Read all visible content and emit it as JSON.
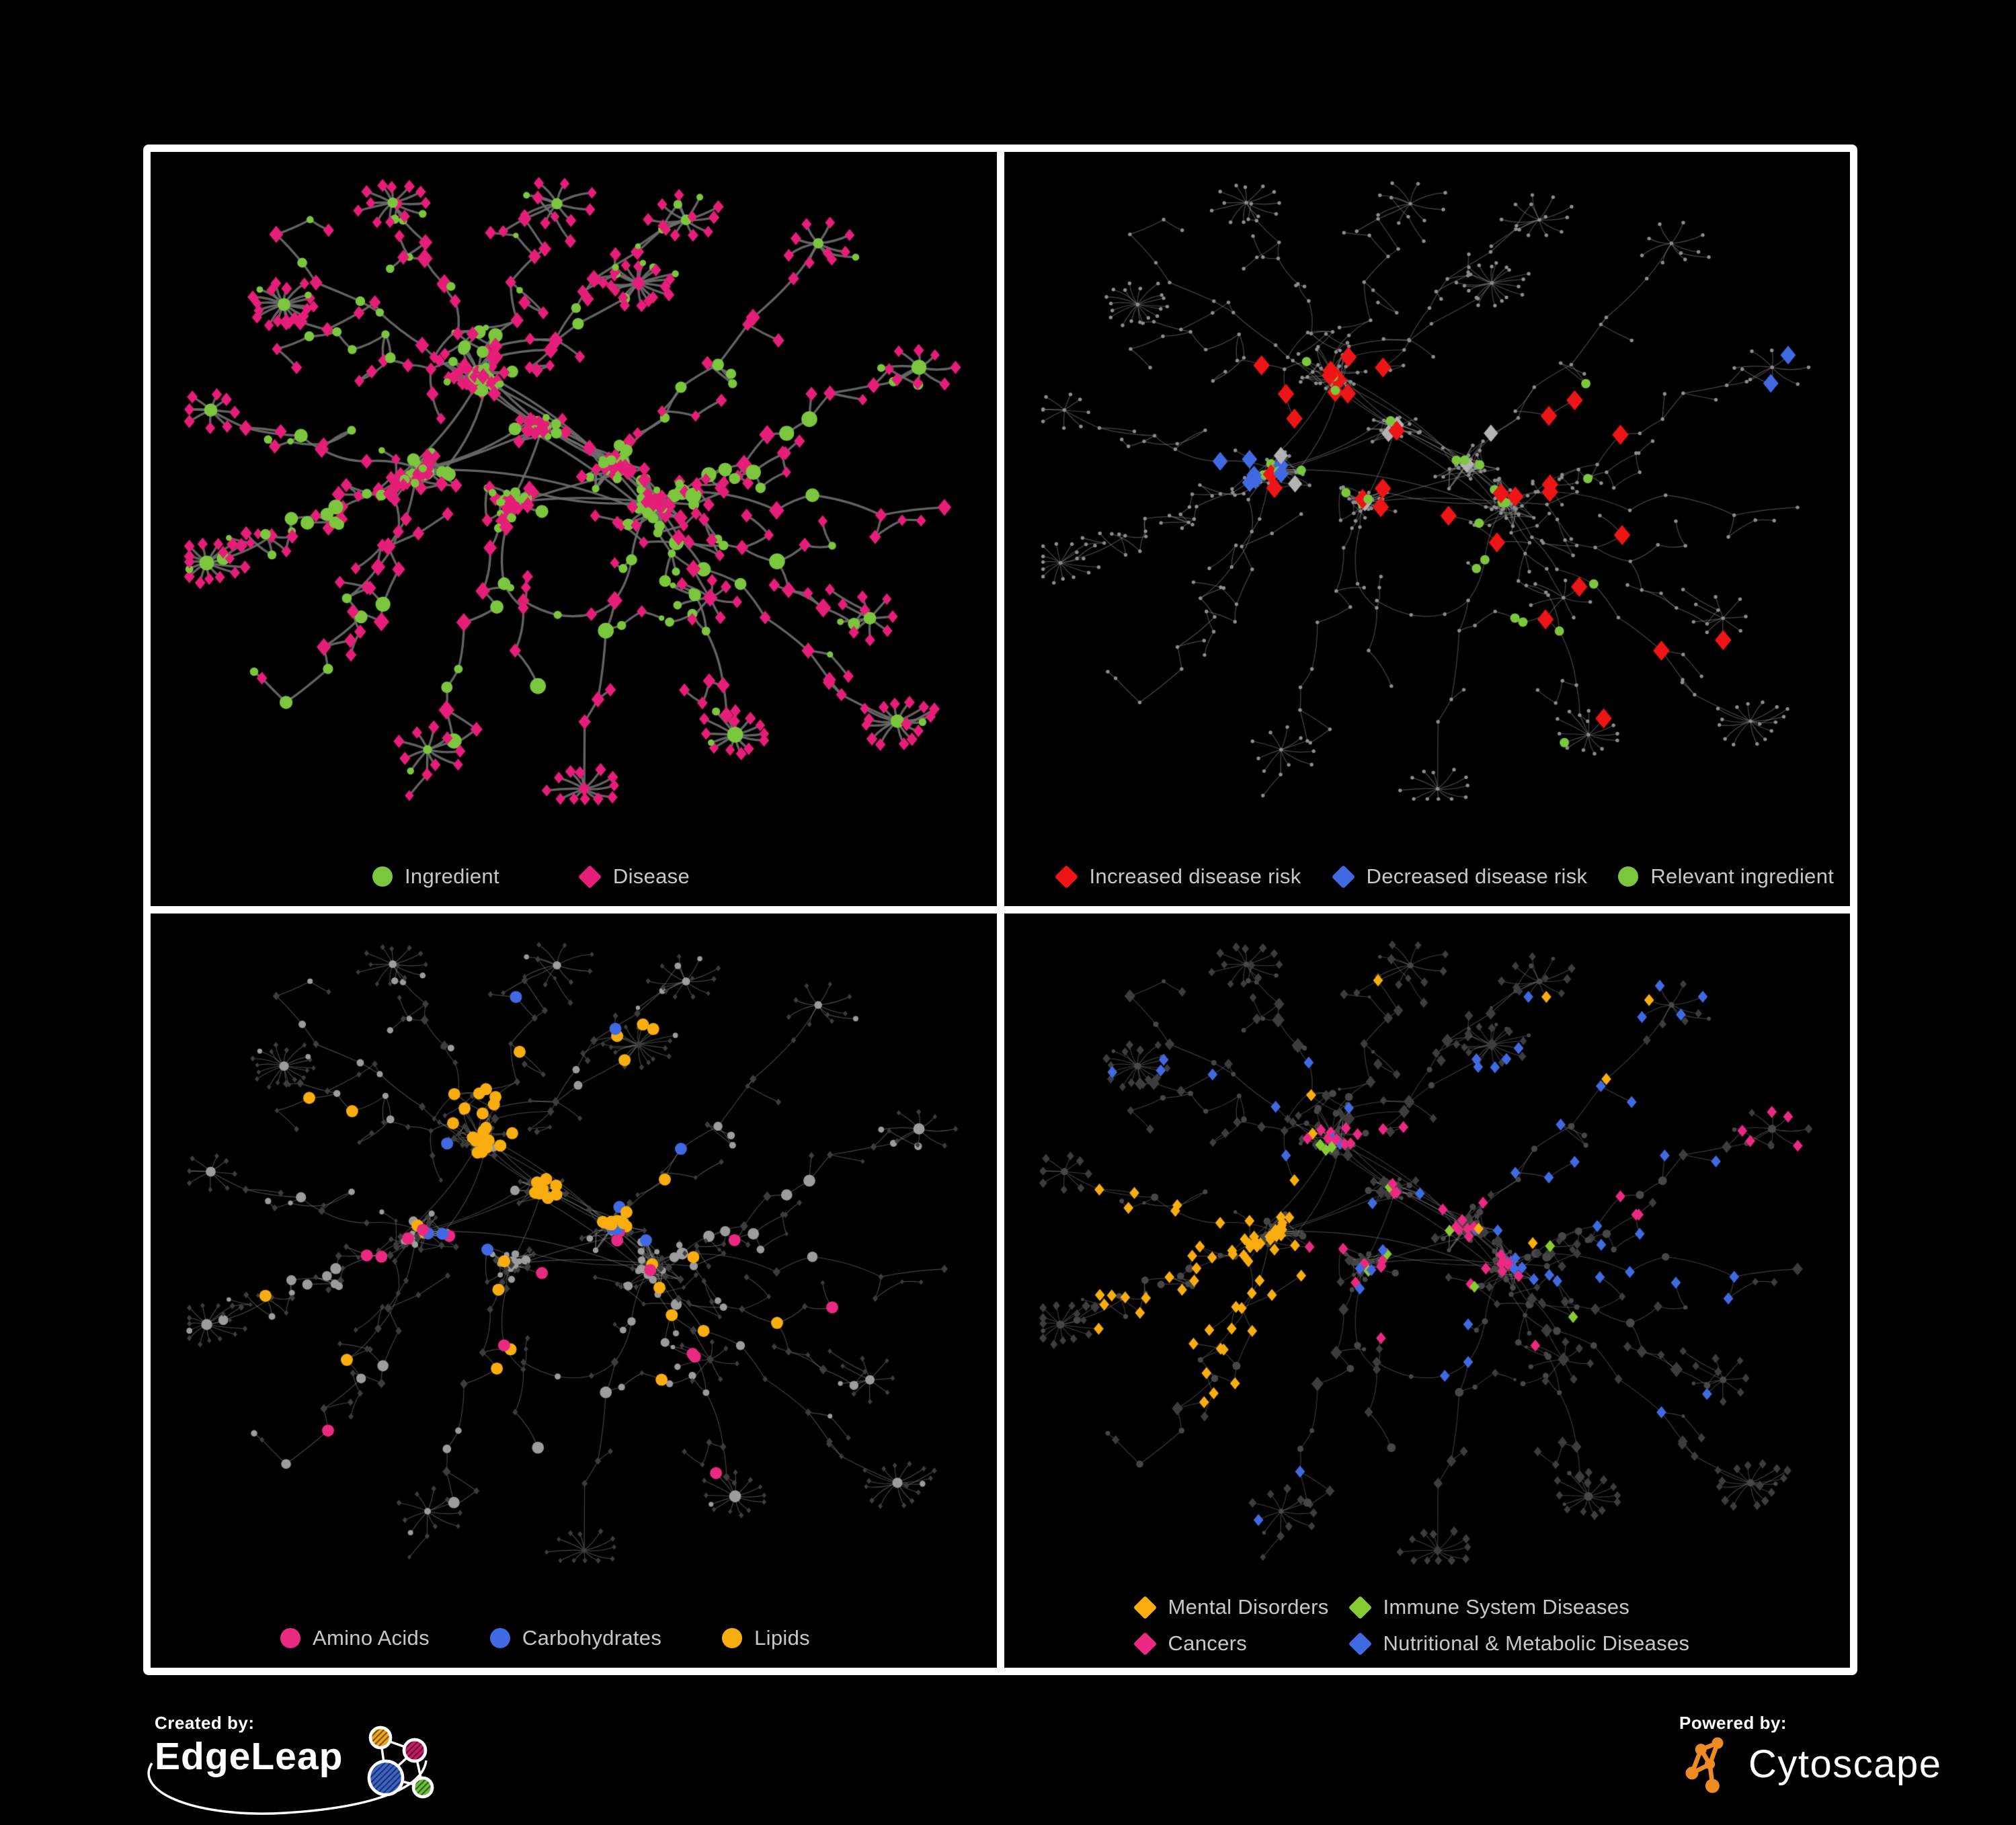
{
  "figure": {
    "background": "#000000",
    "frame_color": "#ffffff",
    "legend_text_color": "#c8c8c8"
  },
  "panels": [
    {
      "name": "ingredient-disease-network",
      "legend": [
        {
          "shape": "circle",
          "color": "#7cc63e",
          "label": "Ingredient"
        },
        {
          "shape": "diamond",
          "color": "#e51e78",
          "label": "Disease"
        }
      ]
    },
    {
      "name": "disease-risk-network",
      "legend": [
        {
          "shape": "diamond",
          "color": "#ed1515",
          "label": "Increased disease risk"
        },
        {
          "shape": "diamond",
          "color": "#4169e1",
          "label": "Decreased disease risk"
        },
        {
          "shape": "circle",
          "color": "#7cc63e",
          "label": "Relevant ingredient"
        }
      ]
    },
    {
      "name": "nutrient-class-network",
      "legend": [
        {
          "shape": "circle",
          "color": "#ea2a80",
          "label": "Amino Acids"
        },
        {
          "shape": "circle",
          "color": "#4169e1",
          "label": "Carbohydrates"
        },
        {
          "shape": "circle",
          "color": "#f9ad0f",
          "label": "Lipids"
        }
      ]
    },
    {
      "name": "disease-class-network",
      "legend": [
        {
          "shape": "diamond",
          "color": "#f9ad0f",
          "label": "Mental Disorders"
        },
        {
          "shape": "diamond",
          "color": "#86cb34",
          "label": "Immune System Diseases"
        },
        {
          "shape": "diamond",
          "color": "#ea2a80",
          "label": "Cancers"
        },
        {
          "shape": "diamond",
          "color": "#4169e1",
          "label": "Nutritional & Metabolic Diseases"
        }
      ]
    }
  ],
  "footer": {
    "created_by": {
      "label": "Created by:",
      "brand": "EdgeLeap"
    },
    "powered_by": {
      "label": "Powered by:",
      "brand": "Cytoscape",
      "accent": "#ef8b23"
    }
  },
  "network": {
    "layout": {
      "seed": 1337,
      "cores": [
        [
          0.46,
          0.4
        ],
        [
          0.31,
          0.47
        ],
        [
          0.55,
          0.46
        ],
        [
          0.42,
          0.52
        ],
        [
          0.6,
          0.52
        ],
        [
          0.38,
          0.32
        ]
      ],
      "arms": [
        [
          0.1,
          0.1
        ],
        [
          0.28,
          0.06
        ],
        [
          0.47,
          0.04
        ],
        [
          0.66,
          0.07
        ],
        [
          0.83,
          0.12
        ],
        [
          0.95,
          0.3
        ],
        [
          0.97,
          0.52
        ],
        [
          0.88,
          0.72
        ],
        [
          0.72,
          0.9
        ],
        [
          0.52,
          0.96
        ],
        [
          0.33,
          0.93
        ],
        [
          0.15,
          0.84
        ],
        [
          0.04,
          0.62
        ],
        [
          0.03,
          0.38
        ],
        [
          0.12,
          0.22
        ],
        [
          0.6,
          0.17
        ],
        [
          0.78,
          0.44
        ],
        [
          0.24,
          0.7
        ],
        [
          0.45,
          0.8
        ],
        [
          0.9,
          0.88
        ],
        [
          0.66,
          0.66
        ],
        [
          0.16,
          0.56
        ]
      ],
      "burst_prob": 0.65,
      "size_core_hub": [
        6,
        9
      ],
      "size_cluster": [
        2.5,
        5
      ],
      "size_chain": [
        3,
        6
      ],
      "size_twig": [
        2,
        4
      ],
      "size_leaf": [
        2.3,
        3.2
      ]
    },
    "render": [
      {
        "edge": {
          "color": "#6e6e6e",
          "alpha": 0.9,
          "width": 3.4
        },
        "circle": {
          "color": "#7cc63e",
          "scale": 2.0
        },
        "diamond": {
          "color": "#e51e78",
          "scale": 1.6,
          "add": 5
        }
      },
      {
        "edge": {
          "color": "#8d8d8d",
          "alpha": 0.5,
          "width": 1.2
        },
        "dot": {
          "color": "#8d8d8d",
          "r": 2.7
        },
        "highlight_seed": 77,
        "highlights": [
          {
            "shape": "diamond",
            "kind": "d",
            "color": "#ed1515",
            "size": 15,
            "count": 26,
            "region": [
              0.28,
              0.28,
              0.75,
              0.64
            ]
          },
          {
            "shape": "diamond",
            "kind": "d",
            "color": "#ed1515",
            "size": 15,
            "count": 5,
            "region": [
              0.62,
              0.62,
              0.95,
              0.88
            ]
          },
          {
            "shape": "diamond",
            "kind": "d",
            "color": "#4169e1",
            "size": 14,
            "count": 7,
            "region": [
              0.2,
              0.36,
              0.37,
              0.62
            ]
          },
          {
            "shape": "diamond",
            "kind": "d",
            "color": "#4169e1",
            "size": 14,
            "count": 2,
            "region": [
              0.8,
              0.24,
              0.97,
              0.4
            ]
          },
          {
            "shape": "diamond",
            "kind": "d",
            "color": "#b3b3b3",
            "size": 13,
            "count": 7,
            "region": [
              0.18,
              0.3,
              0.72,
              0.66
            ]
          },
          {
            "shape": "circle",
            "kind": "c",
            "color": "#7cc63e",
            "size": 7,
            "count": 26,
            "region": [
              0.14,
              0.28,
              0.76,
              0.68
            ]
          },
          {
            "shape": "circle",
            "kind": "c",
            "color": "#7cc63e",
            "size": 7,
            "count": 4,
            "region": [
              0.55,
              0.7,
              0.95,
              0.92
            ]
          }
        ]
      },
      {
        "edge": {
          "color": "#9c9c9c",
          "alpha": 0.45,
          "width": 1.15
        },
        "circle": {
          "color": "#9c9c9c",
          "scale": 1.5
        },
        "diamond": {
          "color": "#3d3d3d",
          "scale": 1.0,
          "add": 1.5
        },
        "highlight_seed": 101,
        "highlights": [
          {
            "shape": "circle",
            "kind": "c",
            "color": "#f9ad0f",
            "size": 9,
            "count": 46,
            "region": [
              0.3,
              0.12,
              0.62,
              0.46
            ]
          },
          {
            "shape": "circle",
            "kind": "c",
            "color": "#f9ad0f",
            "size": 9,
            "count": 16,
            "region": [
              0.1,
              0.08,
              0.95,
              0.85
            ]
          },
          {
            "shape": "circle",
            "kind": "c",
            "color": "#ea2a80",
            "size": 9,
            "count": 16,
            "region": [
              0.05,
              0.1,
              0.95,
              0.95
            ]
          },
          {
            "shape": "circle",
            "kind": "c",
            "color": "#4169e1",
            "size": 9,
            "count": 11,
            "region": [
              0.3,
              0.08,
              0.65,
              0.5
            ]
          }
        ]
      },
      {
        "edge": {
          "color": "#9c9c9c",
          "alpha": 0.4,
          "width": 1.1
        },
        "circle": {
          "color": "#474747",
          "scale": 1.1
        },
        "diamond": {
          "color": "#3d3d3d",
          "scale": 1.5,
          "add": 2.5
        },
        "highlight_seed": 55,
        "highlights": [
          {
            "shape": "diamond",
            "kind": "d",
            "color": "#f9ad0f",
            "size": 9,
            "count": 74,
            "region": [
              0.08,
              0.36,
              0.34,
              0.74
            ]
          },
          {
            "shape": "diamond",
            "kind": "d",
            "color": "#f9ad0f",
            "size": 9,
            "count": 8,
            "region": [
              0.2,
              0.05,
              0.8,
              0.95
            ]
          },
          {
            "shape": "diamond",
            "kind": "d",
            "color": "#ea2a80",
            "size": 9,
            "count": 44,
            "region": [
              0.34,
              0.3,
              0.64,
              0.68
            ]
          },
          {
            "shape": "diamond",
            "kind": "d",
            "color": "#ea2a80",
            "size": 9,
            "count": 8,
            "region": [
              0.72,
              0.25,
              0.98,
              0.45
            ]
          },
          {
            "shape": "diamond",
            "kind": "d",
            "color": "#4169e1",
            "size": 9,
            "count": 40,
            "region": [
              0.05,
              0.05,
              0.95,
              0.95
            ]
          },
          {
            "shape": "diamond",
            "kind": "d",
            "color": "#4169e1",
            "size": 9,
            "count": 18,
            "region": [
              0.58,
              0.08,
              0.97,
              0.55
            ]
          },
          {
            "shape": "diamond",
            "kind": "d",
            "color": "#86cb34",
            "size": 9,
            "count": 10,
            "region": [
              0.28,
              0.28,
              0.75,
              0.68
            ]
          }
        ]
      }
    ]
  }
}
